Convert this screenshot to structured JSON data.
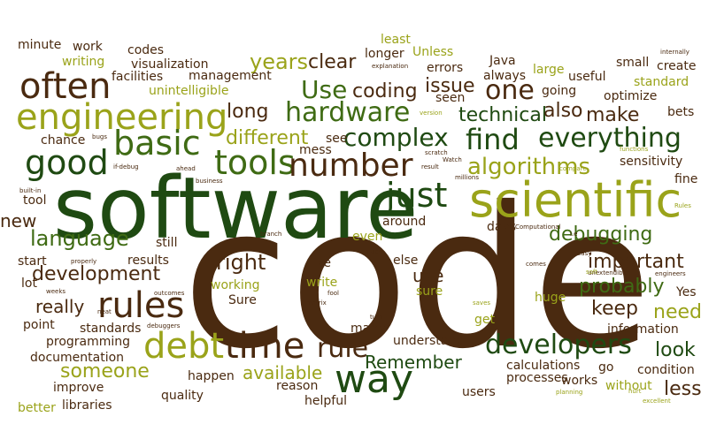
{
  "palette": {
    "brown": "#4a2a10",
    "dark_green": "#1f4a12",
    "green": "#3f6b14",
    "olive": "#9aa31a",
    "light_olive": "#b8b52a"
  },
  "words": [
    {
      "text": "code",
      "color": "brown"
    },
    {
      "text": "software",
      "color": "dark_green"
    },
    {
      "text": "scientific",
      "color": "olive"
    },
    {
      "text": "engineering",
      "color": "olive"
    },
    {
      "text": "often",
      "color": "brown"
    },
    {
      "text": "good",
      "color": "dark_green"
    },
    {
      "text": "basic",
      "color": "green"
    },
    {
      "text": "tools",
      "color": "green"
    },
    {
      "text": "number",
      "color": "brown"
    },
    {
      "text": "just",
      "color": "dark_green"
    },
    {
      "text": "hardware",
      "color": "green"
    },
    {
      "text": "complex",
      "color": "dark_green"
    },
    {
      "text": "find",
      "color": "dark_green"
    },
    {
      "text": "everything",
      "color": "dark_green"
    },
    {
      "text": "algorithms",
      "color": "olive"
    },
    {
      "text": "debt",
      "color": "olive"
    },
    {
      "text": "time",
      "color": "brown"
    },
    {
      "text": "rules",
      "color": "brown"
    },
    {
      "text": "way",
      "color": "dark_green"
    },
    {
      "text": "developers",
      "color": "dark_green"
    },
    {
      "text": "rule",
      "color": "brown"
    },
    {
      "text": "one",
      "color": "brown"
    },
    {
      "text": "Use",
      "color": "green"
    },
    {
      "text": "language",
      "color": "green"
    },
    {
      "text": "development",
      "color": "brown"
    },
    {
      "text": "debugging",
      "color": "green"
    },
    {
      "text": "technical",
      "color": "dark_green"
    },
    {
      "text": "different",
      "color": "olive"
    },
    {
      "text": "years",
      "color": "olive"
    },
    {
      "text": "clear",
      "color": "brown"
    },
    {
      "text": "coding",
      "color": "brown"
    },
    {
      "text": "issue",
      "color": "brown"
    },
    {
      "text": "also",
      "color": "brown"
    },
    {
      "text": "make",
      "color": "brown"
    },
    {
      "text": "long",
      "color": "brown"
    },
    {
      "text": "right",
      "color": "brown"
    },
    {
      "text": "important",
      "color": "brown"
    },
    {
      "text": "probably",
      "color": "green"
    },
    {
      "text": "keep",
      "color": "brown"
    },
    {
      "text": "need",
      "color": "olive"
    },
    {
      "text": "look",
      "color": "dark_green"
    },
    {
      "text": "less",
      "color": "brown"
    },
    {
      "text": "Remember",
      "color": "dark_green"
    },
    {
      "text": "someone",
      "color": "olive"
    },
    {
      "text": "available",
      "color": "olive"
    },
    {
      "text": "really",
      "color": "brown"
    },
    {
      "text": "use",
      "color": "brown"
    },
    {
      "text": "new",
      "color": "brown"
    },
    {
      "text": "minute",
      "color": "brown"
    },
    {
      "text": "work",
      "color": "brown"
    },
    {
      "text": "codes",
      "color": "brown"
    },
    {
      "text": "writing",
      "color": "olive"
    },
    {
      "text": "visualization",
      "color": "brown"
    },
    {
      "text": "facilities",
      "color": "brown"
    },
    {
      "text": "management",
      "color": "brown"
    },
    {
      "text": "unintelligible",
      "color": "olive"
    },
    {
      "text": "least",
      "color": "olive"
    },
    {
      "text": "Unless",
      "color": "olive"
    },
    {
      "text": "longer",
      "color": "brown"
    },
    {
      "text": "errors",
      "color": "brown"
    },
    {
      "text": "Java",
      "color": "brown"
    },
    {
      "text": "always",
      "color": "brown"
    },
    {
      "text": "large",
      "color": "olive"
    },
    {
      "text": "useful",
      "color": "brown"
    },
    {
      "text": "small",
      "color": "brown"
    },
    {
      "text": "create",
      "color": "brown"
    },
    {
      "text": "standard",
      "color": "olive"
    },
    {
      "text": "optimize",
      "color": "brown"
    },
    {
      "text": "going",
      "color": "brown"
    },
    {
      "text": "seen",
      "color": "brown"
    },
    {
      "text": "bets",
      "color": "brown"
    },
    {
      "text": "sensitivity",
      "color": "brown"
    },
    {
      "text": "fine",
      "color": "brown"
    },
    {
      "text": "chance",
      "color": "brown"
    },
    {
      "text": "see",
      "color": "brown"
    },
    {
      "text": "mess",
      "color": "brown"
    },
    {
      "text": "tool",
      "color": "brown"
    },
    {
      "text": "around",
      "color": "brown"
    },
    {
      "text": "days",
      "color": "brown"
    },
    {
      "text": "even",
      "color": "olive"
    },
    {
      "text": "still",
      "color": "brown"
    },
    {
      "text": "start",
      "color": "brown"
    },
    {
      "text": "results",
      "color": "brown"
    },
    {
      "text": "lot",
      "color": "brown"
    },
    {
      "text": "like",
      "color": "brown"
    },
    {
      "text": "write",
      "color": "olive"
    },
    {
      "text": "else",
      "color": "brown"
    },
    {
      "text": "working",
      "color": "olive"
    },
    {
      "text": "Sure",
      "color": "brown"
    },
    {
      "text": "sure",
      "color": "olive"
    },
    {
      "text": "huge",
      "color": "olive"
    },
    {
      "text": "Yes",
      "color": "brown"
    },
    {
      "text": "point",
      "color": "brown"
    },
    {
      "text": "standards",
      "color": "brown"
    },
    {
      "text": "programming",
      "color": "brown"
    },
    {
      "text": "many",
      "color": "brown"
    },
    {
      "text": "get",
      "color": "olive"
    },
    {
      "text": "information",
      "color": "brown"
    },
    {
      "text": "understand",
      "color": "brown"
    },
    {
      "text": "documentation",
      "color": "brown"
    },
    {
      "text": "improve",
      "color": "brown"
    },
    {
      "text": "happen",
      "color": "brown"
    },
    {
      "text": "calculations",
      "color": "brown"
    },
    {
      "text": "go",
      "color": "brown"
    },
    {
      "text": "condition",
      "color": "brown"
    },
    {
      "text": "reason",
      "color": "brown"
    },
    {
      "text": "quality",
      "color": "brown"
    },
    {
      "text": "processes",
      "color": "brown"
    },
    {
      "text": "works",
      "color": "brown"
    },
    {
      "text": "without",
      "color": "olive"
    },
    {
      "text": "users",
      "color": "brown"
    },
    {
      "text": "better",
      "color": "olive"
    },
    {
      "text": "libraries",
      "color": "brown"
    },
    {
      "text": "helpful",
      "color": "brown"
    },
    {
      "text": "internally",
      "color": "brown"
    },
    {
      "text": "explanation",
      "color": "brown"
    },
    {
      "text": "version",
      "color": "olive"
    },
    {
      "text": "bugs",
      "color": "brown"
    },
    {
      "text": "scratch",
      "color": "brown"
    },
    {
      "text": "Watch",
      "color": "brown"
    },
    {
      "text": "result",
      "color": "brown"
    },
    {
      "text": "functions",
      "color": "olive"
    },
    {
      "text": "if-debug",
      "color": "brown"
    },
    {
      "text": "ahead",
      "color": "brown"
    },
    {
      "text": "millions",
      "color": "brown"
    },
    {
      "text": "compare",
      "color": "olive"
    },
    {
      "text": "business",
      "color": "brown"
    },
    {
      "text": "built-in",
      "color": "brown"
    },
    {
      "text": "Rules",
      "color": "olive"
    },
    {
      "text": "branch",
      "color": "brown"
    },
    {
      "text": "Computational",
      "color": "brown"
    },
    {
      "text": "i.e",
      "color": "brown"
    },
    {
      "text": "much",
      "color": "brown"
    },
    {
      "text": "properly",
      "color": "brown"
    },
    {
      "text": "comes",
      "color": "brown"
    },
    {
      "text": "easy",
      "color": "brown"
    },
    {
      "text": "unextendible",
      "color": "brown"
    },
    {
      "text": "engineers",
      "color": "brown"
    },
    {
      "text": "weeks",
      "color": "brown"
    },
    {
      "text": "soft",
      "color": "olive"
    },
    {
      "text": "outcomes",
      "color": "brown"
    },
    {
      "text": "fool",
      "color": "brown"
    },
    {
      "text": "matrix",
      "color": "brown"
    },
    {
      "text": "saves",
      "color": "olive"
    },
    {
      "text": "debuggers",
      "color": "brown"
    },
    {
      "text": "turn",
      "color": "brown"
    },
    {
      "text": "neat",
      "color": "brown"
    },
    {
      "text": "hurt",
      "color": "olive"
    },
    {
      "text": "planning",
      "color": "olive"
    },
    {
      "text": "excellent",
      "color": "olive"
    }
  ]
}
